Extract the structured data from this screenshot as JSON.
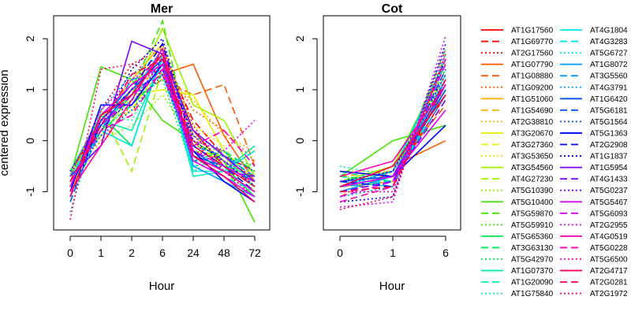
{
  "chart_data": [
    {
      "type": "line",
      "title": "Mer",
      "xlabel": "Hour",
      "ylabel": "centered expression",
      "x": [
        "0",
        "1",
        "2",
        "6",
        "24",
        "48",
        "72"
      ],
      "ylim": [
        -1.75,
        2.45
      ],
      "yticks": [
        -1,
        0,
        1,
        2
      ],
      "series": [
        {
          "name": "AT1G17560",
          "values": [
            -0.6,
            0.3,
            0.9,
            1.4,
            0.2,
            -0.5,
            -0.9
          ]
        },
        {
          "name": "AT1G69770",
          "values": [
            -0.7,
            0.5,
            1.1,
            1.7,
            0.4,
            -0.3,
            -0.6
          ]
        },
        {
          "name": "AT2G17560",
          "values": [
            -0.9,
            0.6,
            1.5,
            1.8,
            0.3,
            -0.6,
            -1.1
          ]
        },
        {
          "name": "AT1G07790",
          "values": [
            -0.7,
            0.2,
            1.0,
            1.3,
            1.5,
            0.1,
            -0.8
          ]
        },
        {
          "name": "AT1G08880",
          "values": [
            -0.8,
            0.3,
            0.8,
            1.2,
            0.9,
            1.1,
            -0.5
          ]
        },
        {
          "name": "AT1G09200",
          "values": [
            -0.6,
            0.0,
            0.7,
            1.6,
            0.6,
            0.2,
            -0.4
          ]
        },
        {
          "name": "AT1G51060",
          "values": [
            -1.0,
            0.4,
            1.2,
            1.9,
            0.1,
            -0.4,
            -0.9
          ]
        },
        {
          "name": "AT1G54690",
          "values": [
            -0.8,
            0.2,
            0.5,
            1.9,
            0.2,
            -0.3,
            -0.7
          ]
        },
        {
          "name": "AT2G38810",
          "values": [
            -0.7,
            0.3,
            1.0,
            1.2,
            0.8,
            0.1,
            -0.2
          ]
        },
        {
          "name": "AT3G20670",
          "values": [
            -0.9,
            0.5,
            0.9,
            1.0,
            0.9,
            -0.2,
            -0.8
          ]
        },
        {
          "name": "AT3G27360",
          "values": [
            -0.8,
            0.2,
            0.6,
            1.5,
            0.0,
            -0.5,
            -0.6
          ]
        },
        {
          "name": "AT3G53650",
          "values": [
            -0.7,
            0.4,
            1.1,
            1.6,
            0.3,
            -0.1,
            -1.0
          ]
        },
        {
          "name": "AT3G54560",
          "values": [
            -0.6,
            0.1,
            0.9,
            2.2,
            0.7,
            0.4,
            -0.7
          ]
        },
        {
          "name": "AT4G27230",
          "values": [
            -0.8,
            0.6,
            -0.6,
            1.4,
            -0.2,
            -0.3,
            -0.9
          ]
        },
        {
          "name": "AT5G10390",
          "values": [
            -1.0,
            0.0,
            0.3,
            0.9,
            0.0,
            -0.4,
            -0.3
          ]
        },
        {
          "name": "AT5G10400",
          "values": [
            -0.7,
            1.45,
            1.2,
            0.4,
            0.0,
            -0.4,
            -1.6
          ]
        },
        {
          "name": "AT5G59870",
          "values": [
            -0.9,
            0.3,
            1.0,
            2.35,
            -0.3,
            -0.5,
            -0.7
          ]
        },
        {
          "name": "AT5G59910",
          "values": [
            -0.8,
            0.4,
            1.1,
            1.5,
            -0.1,
            -0.2,
            -0.8
          ]
        },
        {
          "name": "AT5G65360",
          "values": [
            -0.6,
            0.5,
            -0.1,
            1.7,
            -0.3,
            -0.5,
            -1.1
          ]
        },
        {
          "name": "AT3G63130",
          "values": [
            -0.7,
            0.2,
            0.7,
            1.3,
            -0.4,
            -0.2,
            -0.6
          ]
        },
        {
          "name": "AT5G42970",
          "values": [
            -0.9,
            0.3,
            0.8,
            1.2,
            -0.6,
            -0.3,
            -0.5
          ]
        },
        {
          "name": "AT1G07370",
          "values": [
            -0.8,
            0.4,
            0.2,
            1.6,
            -0.7,
            -0.6,
            -0.1
          ]
        },
        {
          "name": "AT1G20090",
          "values": [
            -0.7,
            0.3,
            0.9,
            1.4,
            -0.5,
            -0.4,
            -0.8
          ]
        },
        {
          "name": "AT1G75840",
          "values": [
            -0.6,
            0.5,
            0.4,
            1.5,
            -0.4,
            -0.5,
            -0.6
          ]
        },
        {
          "name": "AT4G1804",
          "values": [
            -0.9,
            0.2,
            -0.1,
            1.7,
            -0.6,
            -0.6,
            -0.2
          ]
        },
        {
          "name": "AT4G3283",
          "values": [
            -0.8,
            0.4,
            1.0,
            1.3,
            -0.3,
            -0.7,
            -1.0
          ]
        },
        {
          "name": "AT5G6727",
          "values": [
            -0.7,
            0.3,
            0.8,
            1.5,
            -0.2,
            -0.5,
            -0.9
          ]
        },
        {
          "name": "AT1G8072",
          "values": [
            -0.9,
            0.5,
            0.9,
            1.8,
            -0.5,
            -0.8,
            -1.1
          ]
        },
        {
          "name": "AT3G5560",
          "values": [
            -1.1,
            0.2,
            1.2,
            1.4,
            -0.1,
            -0.3,
            -0.7
          ]
        },
        {
          "name": "AT4G3791",
          "values": [
            -1.4,
            0.6,
            1.3,
            1.7,
            0.1,
            -0.2,
            -0.9
          ]
        },
        {
          "name": "AT1G6420",
          "values": [
            -0.9,
            0.3,
            1.0,
            1.6,
            -0.2,
            -0.6,
            -1.0
          ]
        },
        {
          "name": "AT5G6181",
          "values": [
            -1.2,
            0.4,
            1.1,
            1.5,
            -0.3,
            -0.5,
            -0.8
          ]
        },
        {
          "name": "AT5G1564",
          "values": [
            -0.8,
            0.1,
            0.6,
            1.3,
            -0.4,
            -0.3,
            -0.6
          ]
        },
        {
          "name": "AT5G1363",
          "values": [
            -1.0,
            0.7,
            0.7,
            1.5,
            -0.2,
            -0.8,
            -1.2
          ]
        },
        {
          "name": "AT2G2908",
          "values": [
            -1.1,
            0.4,
            1.0,
            1.9,
            -0.1,
            -0.5,
            -1.0
          ]
        },
        {
          "name": "AT1G1837",
          "values": [
            -0.9,
            0.3,
            1.4,
            2.0,
            0.0,
            -0.4,
            -0.9
          ]
        },
        {
          "name": "AT1G5954",
          "values": [
            -0.7,
            -0.1,
            1.95,
            1.7,
            0.2,
            -0.3,
            -0.8
          ]
        },
        {
          "name": "AT4G1433",
          "values": [
            -0.8,
            0.2,
            0.9,
            1.4,
            -0.3,
            -0.6,
            -0.7
          ]
        },
        {
          "name": "AT5G0237",
          "values": [
            -0.6,
            0.4,
            0.7,
            1.6,
            0.1,
            -0.4,
            -0.9
          ]
        },
        {
          "name": "AT5G5467",
          "values": [
            -0.9,
            0.5,
            1.1,
            1.5,
            -0.4,
            -0.7,
            -1.1
          ]
        },
        {
          "name": "AT5G6093",
          "values": [
            -0.8,
            0.3,
            0.9,
            1.3,
            -0.2,
            -0.5,
            -0.8
          ]
        },
        {
          "name": "AT2G2955",
          "values": [
            -0.7,
            0.6,
            1.2,
            1.6,
            0.0,
            -0.2,
            0.4
          ]
        },
        {
          "name": "AT4G0519",
          "values": [
            -1.0,
            -0.1,
            0.8,
            1.8,
            -0.3,
            -0.6,
            -1.0
          ]
        },
        {
          "name": "AT5G0228",
          "values": [
            -0.8,
            0.2,
            0.5,
            1.4,
            -0.1,
            0.2,
            -0.5
          ]
        },
        {
          "name": "AT5G6500",
          "values": [
            -0.9,
            0.4,
            1.0,
            1.5,
            -0.2,
            -0.4,
            -0.7
          ]
        },
        {
          "name": "AT2G4717",
          "values": [
            -1.1,
            0.5,
            0.9,
            1.7,
            -0.3,
            -0.7,
            -1.2
          ]
        },
        {
          "name": "AT2G0281",
          "values": [
            -0.8,
            0.3,
            1.3,
            1.6,
            -0.1,
            -0.5,
            -0.9
          ]
        },
        {
          "name": "AT2G1972",
          "values": [
            -1.55,
            1.4,
            1.5,
            1.3,
            0.0,
            -0.6,
            -0.8
          ]
        }
      ]
    },
    {
      "type": "line",
      "title": "Cot",
      "xlabel": "Hour",
      "ylabel": "",
      "x": [
        "0",
        "1",
        "6"
      ],
      "ylim": [
        -1.75,
        2.45
      ],
      "yticks": [
        -1,
        0,
        1,
        2
      ],
      "series": [
        {
          "name": "AT1G17560",
          "values": [
            -0.9,
            -0.8,
            0.9
          ]
        },
        {
          "name": "AT1G69770",
          "values": [
            -1.0,
            -0.9,
            1.1
          ]
        },
        {
          "name": "AT2G17560",
          "values": [
            -0.8,
            -0.7,
            1.3
          ]
        },
        {
          "name": "AT1G07790",
          "values": [
            -0.9,
            -0.5,
            0.0
          ]
        },
        {
          "name": "AT1G08880",
          "values": [
            -1.1,
            -0.6,
            0.7
          ]
        },
        {
          "name": "AT1G09200",
          "values": [
            -0.8,
            -0.7,
            1.0
          ]
        },
        {
          "name": "AT1G51060",
          "values": [
            -0.9,
            -0.8,
            1.5
          ]
        },
        {
          "name": "AT1G54690",
          "values": [
            -0.7,
            -0.6,
            1.2
          ]
        },
        {
          "name": "AT2G38810",
          "values": [
            -1.0,
            -0.7,
            1.4
          ]
        },
        {
          "name": "AT3G20670",
          "values": [
            -0.8,
            -0.9,
            1.6
          ]
        },
        {
          "name": "AT3G27360",
          "values": [
            -0.9,
            -0.6,
            1.3
          ]
        },
        {
          "name": "AT3G53650",
          "values": [
            -0.7,
            -0.8,
            1.1
          ]
        },
        {
          "name": "AT3G54560",
          "values": [
            -0.8,
            -0.5,
            1.5
          ]
        },
        {
          "name": "AT4G27230",
          "values": [
            -0.9,
            -0.7,
            1.0
          ]
        },
        {
          "name": "AT5G10390",
          "values": [
            -0.6,
            -0.6,
            1.2
          ]
        },
        {
          "name": "AT5G10400",
          "values": [
            -0.7,
            0.0,
            0.3
          ]
        },
        {
          "name": "AT5G59870",
          "values": [
            -0.9,
            -0.8,
            1.8
          ]
        },
        {
          "name": "AT5G59910",
          "values": [
            -1.0,
            -0.7,
            1.4
          ]
        },
        {
          "name": "AT5G65360",
          "values": [
            -0.8,
            -0.6,
            1.6
          ]
        },
        {
          "name": "AT3G63130",
          "values": [
            -0.7,
            -0.8,
            1.1
          ]
        },
        {
          "name": "AT5G42970",
          "values": [
            -0.9,
            -0.7,
            1.3
          ]
        },
        {
          "name": "AT1G07370",
          "values": [
            -0.8,
            -0.9,
            1.2
          ]
        },
        {
          "name": "AT1G20090",
          "values": [
            -0.6,
            -0.8,
            1.0
          ]
        },
        {
          "name": "AT1G75840",
          "values": [
            -0.5,
            -0.7,
            1.4
          ]
        },
        {
          "name": "AT4G1804",
          "values": [
            -0.9,
            -0.6,
            1.5
          ]
        },
        {
          "name": "AT4G3283",
          "values": [
            -0.8,
            -0.8,
            1.1
          ]
        },
        {
          "name": "AT5G6727",
          "values": [
            -0.7,
            -0.9,
            1.3
          ]
        },
        {
          "name": "AT1G8072",
          "values": [
            -1.0,
            -0.7,
            1.2
          ]
        },
        {
          "name": "AT3G5560",
          "values": [
            -0.9,
            -0.8,
            0.9
          ]
        },
        {
          "name": "AT4G3791",
          "values": [
            -1.1,
            -0.9,
            1.7
          ]
        },
        {
          "name": "AT1G6420",
          "values": [
            -0.8,
            -0.7,
            1.0
          ]
        },
        {
          "name": "AT5G6181",
          "values": [
            -1.0,
            -0.8,
            1.4
          ]
        },
        {
          "name": "AT5G1564",
          "values": [
            -0.9,
            -0.6,
            1.2
          ]
        },
        {
          "name": "AT5G1363",
          "values": [
            -0.6,
            -0.7,
            0.3
          ]
        },
        {
          "name": "AT2G2908",
          "values": [
            -0.8,
            -0.9,
            1.6
          ]
        },
        {
          "name": "AT1G1837",
          "values": [
            -1.2,
            -1.1,
            1.9
          ]
        },
        {
          "name": "AT1G5954",
          "values": [
            -0.9,
            -0.7,
            1.1
          ]
        },
        {
          "name": "AT4G1433",
          "values": [
            -1.0,
            -0.8,
            0.8
          ]
        },
        {
          "name": "AT5G0237",
          "values": [
            -0.8,
            -0.6,
            1.3
          ]
        },
        {
          "name": "AT5G5467",
          "values": [
            -0.9,
            -0.7,
            0.6
          ]
        },
        {
          "name": "AT5G6093",
          "values": [
            -1.1,
            -0.8,
            1.5
          ]
        },
        {
          "name": "AT2G2955",
          "values": [
            -1.3,
            -1.2,
            2.05
          ]
        },
        {
          "name": "AT4G0519",
          "values": [
            -0.7,
            -0.4,
            1.1
          ]
        },
        {
          "name": "AT5G0228",
          "values": [
            -1.2,
            -0.9,
            1.6
          ]
        },
        {
          "name": "AT5G6500",
          "values": [
            -1.0,
            -1.0,
            1.8
          ]
        },
        {
          "name": "AT2G4717",
          "values": [
            -0.9,
            -0.5,
            0.9
          ]
        },
        {
          "name": "AT2G0281",
          "values": [
            -1.0,
            -0.9,
            1.2
          ]
        },
        {
          "name": "AT2G1972",
          "values": [
            -1.35,
            -1.1,
            1.7
          ]
        }
      ]
    }
  ],
  "legend_colors": [
    "#ff0000",
    "#ff0000",
    "#ff0000",
    "#ff5a00",
    "#ff5a00",
    "#ff5a00",
    "#ffb400",
    "#ffb400",
    "#ffb400",
    "#e6f000",
    "#e6f000",
    "#e6f000",
    "#9ff200",
    "#9ff200",
    "#9ff200",
    "#3ce600",
    "#3ce600",
    "#3ce600",
    "#00e655",
    "#00e655",
    "#00e655",
    "#00f0b4",
    "#00f0b4",
    "#00f0b4",
    "#00e6e6",
    "#00e6e6",
    "#00e6e6",
    "#009cff",
    "#009cff",
    "#009cff",
    "#0050ff",
    "#0050ff",
    "#0050ff",
    "#0000ff",
    "#0000ff",
    "#0000ff",
    "#7a00ff",
    "#7a00ff",
    "#7a00ff",
    "#dc00ff",
    "#dc00ff",
    "#dc00ff",
    "#ff00b4",
    "#ff00b4",
    "#ff00b4",
    "#ff0050",
    "#ff0050",
    "#ff0050"
  ],
  "legend_dash": [
    "solid",
    "dashed",
    "dotted"
  ]
}
